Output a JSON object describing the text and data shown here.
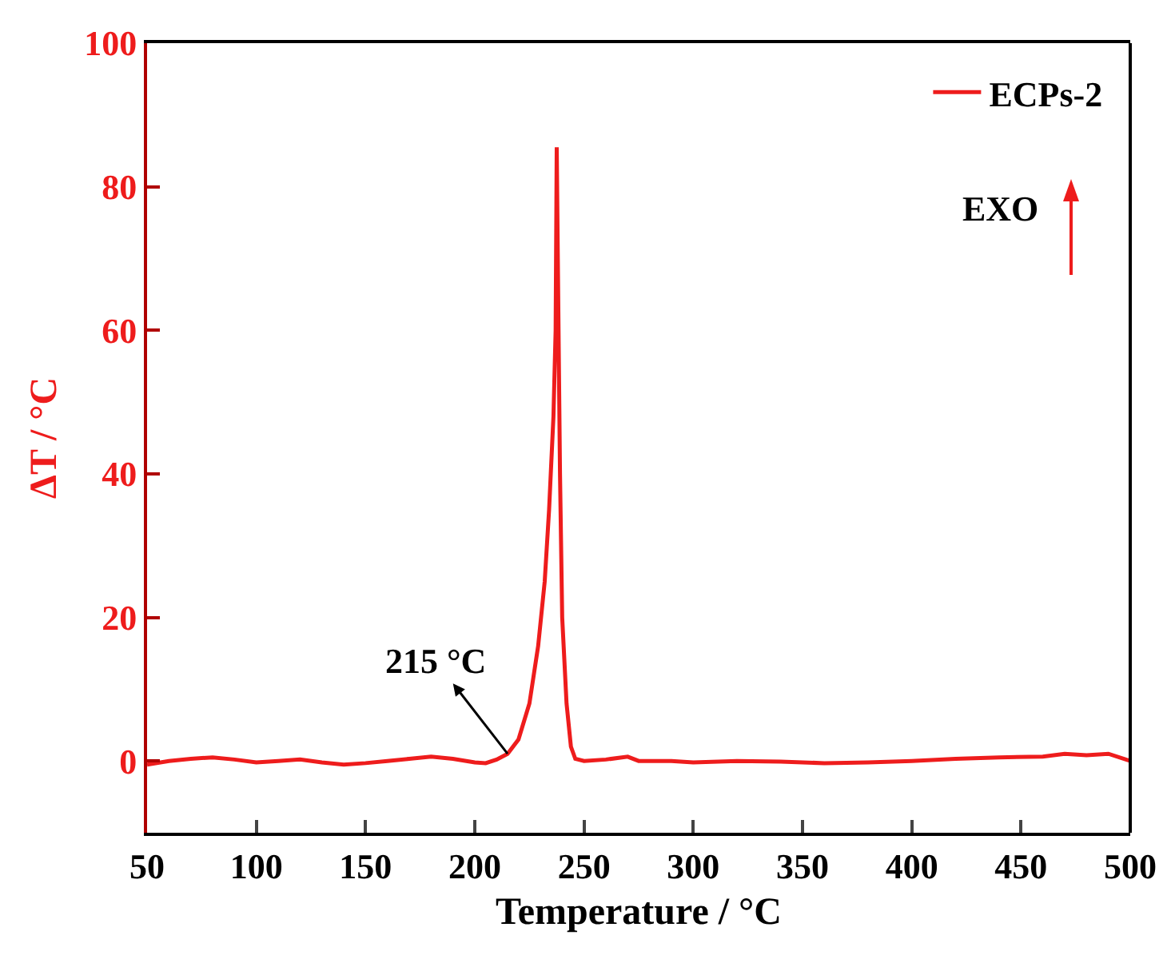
{
  "chart_data": {
    "type": "line",
    "xlabel": "Temperature / °C",
    "ylabel": "ΔT / °C",
    "xlim": [
      50,
      500
    ],
    "xticks": [
      50,
      100,
      150,
      200,
      250,
      300,
      350,
      400,
      450,
      500
    ],
    "ylim": [
      -10,
      100
    ],
    "yticks": [
      0,
      20,
      40,
      60,
      80,
      100
    ],
    "grid": false,
    "legend": "top right",
    "marker": "none",
    "line_style": "solid",
    "series": [
      {
        "name": "ECPs-2",
        "color": "#ee1c1c",
        "x": [
          50,
          60,
          70,
          80,
          90,
          100,
          110,
          120,
          130,
          140,
          150,
          160,
          170,
          180,
          190,
          200,
          205,
          210,
          215,
          220,
          225,
          229,
          232,
          234,
          236,
          237,
          237.5,
          238,
          239,
          240,
          242,
          244,
          246,
          250,
          260,
          270,
          275,
          290,
          300,
          320,
          340,
          360,
          380,
          400,
          420,
          440,
          460,
          470,
          480,
          490,
          500
        ],
        "values": [
          -0.5,
          0,
          0.3,
          0.5,
          0.2,
          -0.2,
          0,
          0.2,
          -0.2,
          -0.5,
          -0.3,
          0,
          0.3,
          0.6,
          0.3,
          -0.2,
          -0.3,
          0.2,
          1,
          3,
          8,
          16,
          25,
          35,
          48,
          60,
          85.5,
          70,
          40,
          20,
          8,
          2,
          0.3,
          0,
          0.2,
          0.6,
          0,
          0,
          -0.2,
          0,
          -0.1,
          -0.3,
          -0.2,
          0,
          0.3,
          0.5,
          0.6,
          1,
          0.8,
          1,
          0
        ]
      }
    ],
    "annotations": [
      {
        "text": "215 °C",
        "x": 215,
        "y": 1
      },
      "EXO"
    ]
  }
}
